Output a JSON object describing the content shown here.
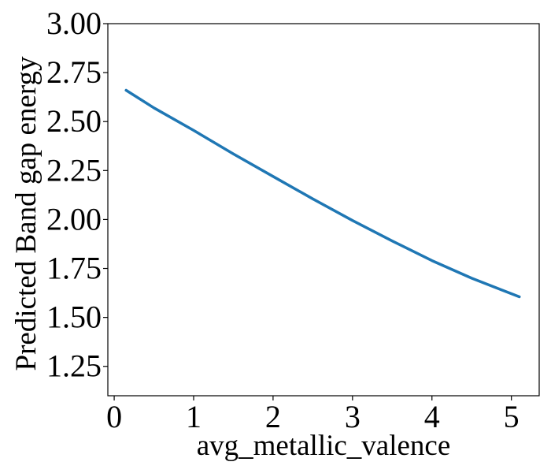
{
  "chart_data": {
    "type": "line",
    "title": "",
    "xlabel": "avg_metallic_valence",
    "ylabel": "Predicted Band gap energy",
    "xlim": [
      -0.08,
      5.35
    ],
    "ylim": [
      1.1,
      3.0
    ],
    "xticks": [
      0,
      1,
      2,
      3,
      4,
      5
    ],
    "xtick_labels": [
      "0",
      "1",
      "2",
      "3",
      "4",
      "5"
    ],
    "yticks": [
      1.25,
      1.5,
      1.75,
      2.0,
      2.25,
      2.5,
      2.75,
      3.0
    ],
    "ytick_labels": [
      "1.25",
      "1.50",
      "1.75",
      "2.00",
      "2.25",
      "2.50",
      "2.75",
      "3.00"
    ],
    "grid": false,
    "series": [
      {
        "color": "#1f77b4",
        "x": [
          0.15,
          0.5,
          1.0,
          1.5,
          2.0,
          2.5,
          3.0,
          3.5,
          4.0,
          4.5,
          5.1
        ],
        "y": [
          2.66,
          2.57,
          2.455,
          2.335,
          2.22,
          2.105,
          1.995,
          1.89,
          1.79,
          1.7,
          1.605
        ]
      }
    ]
  }
}
